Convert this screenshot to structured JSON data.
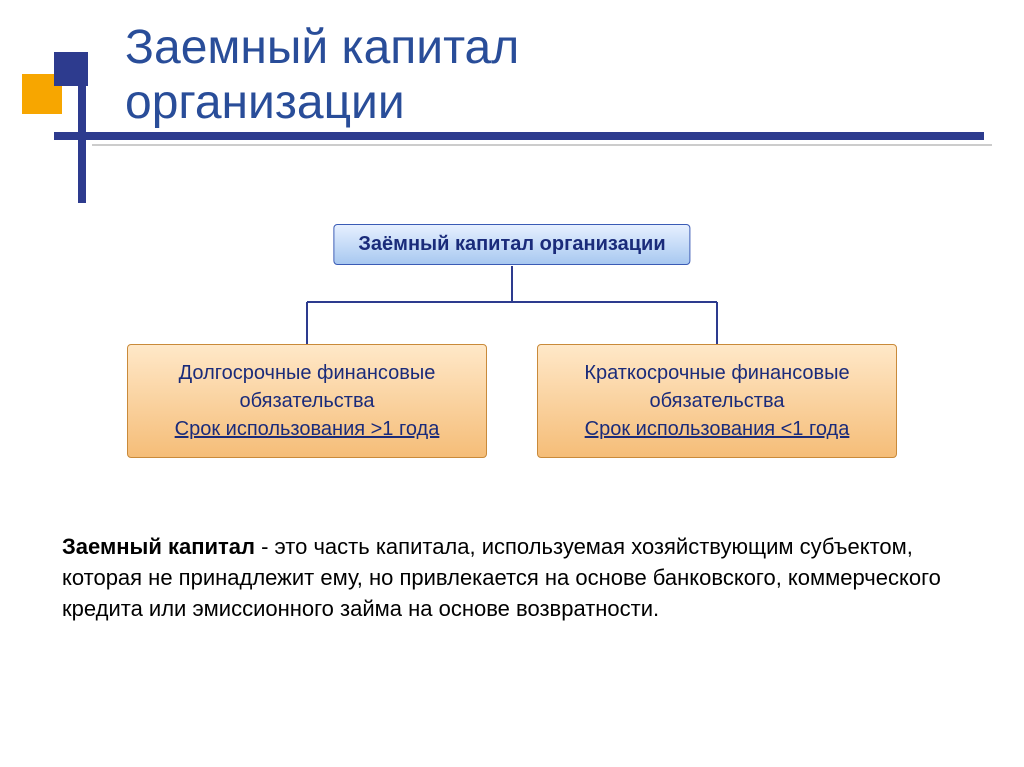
{
  "colors": {
    "title": "#294d99",
    "orange": "#f7a600",
    "navy": "#2d3b8e",
    "gray_line": "#cccccc",
    "root_bg_top": "#e6f0ff",
    "root_bg_bottom": "#a8c8f0",
    "root_border": "#3a5bb5",
    "root_text": "#1a2b7a",
    "child_bg_top": "#ffe8c8",
    "child_bg_bottom": "#f5bd78",
    "child_border": "#c98a3a",
    "child_text": "#1a2b7a",
    "connector": "#2d3b8e"
  },
  "title": {
    "line1": "Заемный капитал",
    "line2": "организации",
    "fontsize": 48
  },
  "diagram": {
    "root": {
      "label": "Заёмный капитал организации"
    },
    "children": [
      {
        "line1": "Долгосрочные финансовые обязательства",
        "line2": "Срок использования >1 года"
      },
      {
        "line1": "Краткосрочные финансовые обязательства",
        "line2": "Срок использования <1 года"
      }
    ],
    "connector_width": 2
  },
  "definition": {
    "term": "Заемный капитал",
    "text": " - это часть капитала, используемая хозяйствующим субъектом, которая не принадлежит ему, но привлекается на основе банковского, коммерческого кредита или эмиссионного займа на основе возвратности."
  }
}
